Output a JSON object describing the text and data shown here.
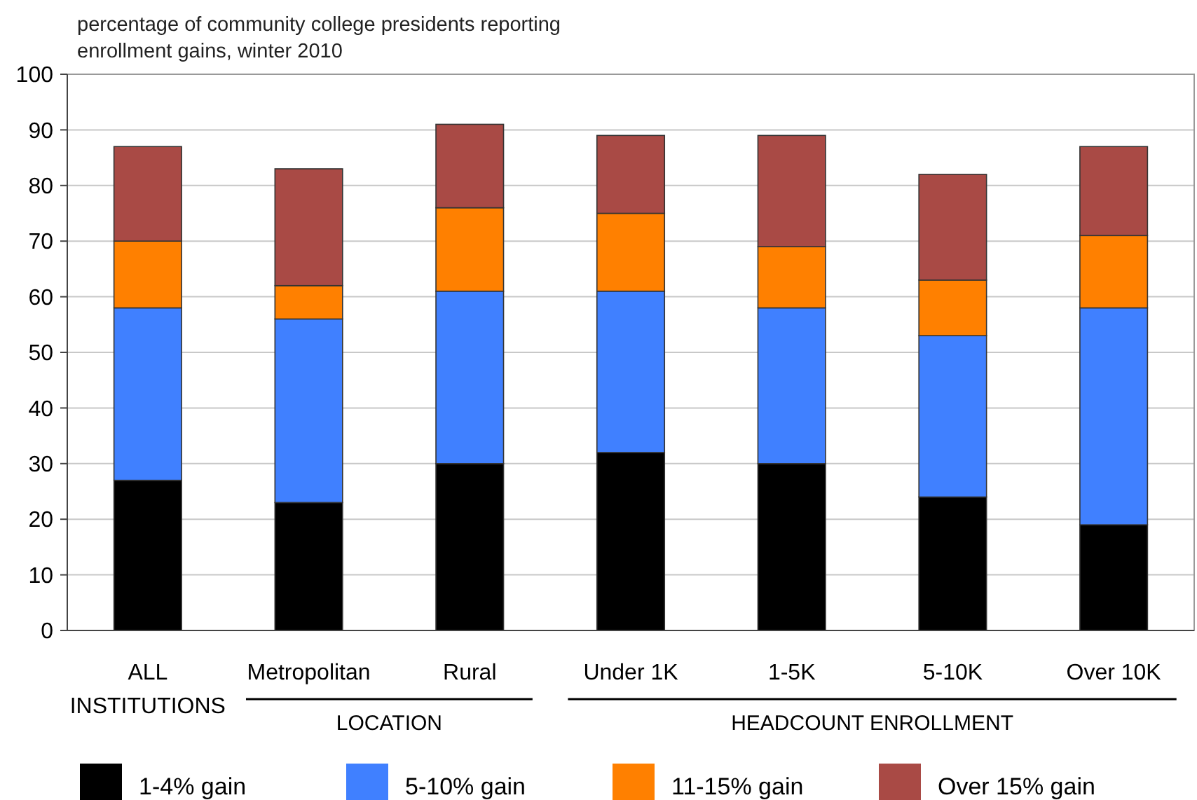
{
  "chart_data": {
    "type": "bar",
    "stacked": true,
    "title": "percentage of community college presidents reporting enrollment gains, winter 2010",
    "categories": [
      "ALL INSTITUTIONS",
      "Metropolitan",
      "Rural",
      "Under 1K",
      "1-5K",
      "5-10K",
      "Over 10K"
    ],
    "series": [
      {
        "name": "1-4% gain",
        "color": "#000000",
        "values": [
          27,
          23,
          30,
          32,
          30,
          24,
          19
        ]
      },
      {
        "name": "5-10% gain",
        "color": "#4080ff",
        "values": [
          31,
          33,
          31,
          29,
          28,
          29,
          39
        ]
      },
      {
        "name": "11-15% gain",
        "color": "#ff8000",
        "values": [
          12,
          6,
          15,
          14,
          11,
          10,
          13
        ]
      },
      {
        "name": "Over 15% gain",
        "color": "#a94a45",
        "values": [
          17,
          21,
          15,
          14,
          20,
          19,
          16
        ]
      }
    ],
    "annotations": [
      "LOCATION",
      "HEADCOUNT ENROLLMENT"
    ],
    "ylim": [
      0,
      100
    ],
    "yticks": [
      0,
      10,
      20,
      30,
      40,
      50,
      60,
      70,
      80,
      90,
      100
    ],
    "grid": "y",
    "legend": "bottom"
  }
}
